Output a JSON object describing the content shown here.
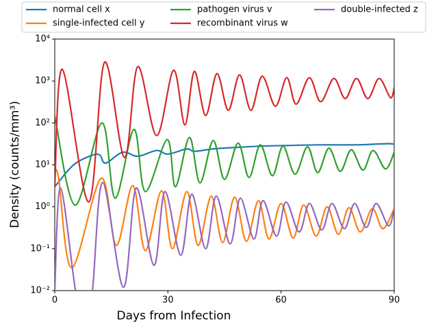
{
  "chart_data": {
    "type": "line",
    "xlabel": "Days from Infection",
    "ylabel": "Density (counts/mm³)",
    "xlim": [
      0,
      90
    ],
    "xticks": [
      0,
      30,
      60,
      90
    ],
    "ylim": [
      0.01,
      10000
    ],
    "log_y": true,
    "yticks": [
      {
        "value": 0.01,
        "label": "10⁻²"
      },
      {
        "value": 0.1,
        "label": "10⁻¹"
      },
      {
        "value": 1,
        "label": "10⁰"
      },
      {
        "value": 10,
        "label": "10¹"
      },
      {
        "value": 100,
        "label": "10²"
      },
      {
        "value": 1000,
        "label": "10³"
      },
      {
        "value": 10000,
        "label": "10⁴"
      }
    ],
    "legend": "top",
    "series": [
      {
        "name": "normal cell x",
        "color": "#1f77b4",
        "x": [
          0,
          5,
          10,
          12,
          13.5,
          18,
          22,
          27,
          30,
          35,
          37,
          42,
          48,
          55,
          62,
          70,
          80,
          88,
          90
        ],
        "values": [
          3,
          10,
          17,
          17,
          11,
          20,
          16,
          22,
          18,
          24,
          21,
          24,
          26,
          28,
          29,
          30,
          30,
          32,
          31
        ]
      },
      {
        "name": "single-infected cell y",
        "color": "#ff7f0e",
        "x": [
          0,
          1,
          4.5,
          12.3,
          16.3,
          20.7,
          24,
          28.3,
          31.2,
          35,
          38,
          41.5,
          44.5,
          47.7,
          50.8,
          54,
          56.8,
          60,
          63.2,
          66,
          69.3,
          72.2,
          75.2,
          78,
          81,
          84.2,
          87,
          90
        ],
        "values": [
          6,
          5,
          0.035,
          4.8,
          0.12,
          3.2,
          0.09,
          2.4,
          0.1,
          2.3,
          0.12,
          1.8,
          0.14,
          1.7,
          0.15,
          1.4,
          0.17,
          1.2,
          0.18,
          1.1,
          0.2,
          1.0,
          0.22,
          0.95,
          0.25,
          0.9,
          0.3,
          0.9
        ]
      },
      {
        "name": "pathogen virus v",
        "color": "#2ca02c",
        "x": [
          0,
          5.4,
          12.5,
          16,
          21,
          24,
          29.8,
          32,
          35.7,
          38.5,
          42,
          45,
          48.6,
          51.5,
          54.5,
          57.7,
          60.5,
          63.7,
          67,
          69.7,
          72.7,
          75.7,
          78.6,
          81.7,
          84.4,
          87.7,
          90
        ],
        "values": [
          150,
          1.1,
          100,
          1.6,
          70,
          2.3,
          40,
          3,
          45,
          3.7,
          38,
          4.5,
          33,
          5,
          30,
          5.5,
          28,
          6,
          27,
          6.5,
          25,
          7,
          23,
          7.5,
          22,
          8,
          20
        ]
      },
      {
        "name": "recombinant virus w",
        "color": "#d62728",
        "x": [
          0,
          2,
          9,
          13.2,
          18.5,
          22,
          27,
          31.5,
          34.5,
          37,
          40,
          43,
          46,
          49,
          52,
          55,
          58.5,
          61.5,
          64,
          67.5,
          70.5,
          74,
          77,
          80,
          83,
          86,
          89,
          90
        ],
        "values": [
          3,
          1900,
          1.3,
          2800,
          15,
          2200,
          50,
          1800,
          90,
          1700,
          150,
          1500,
          200,
          1400,
          200,
          1300,
          250,
          1200,
          280,
          1200,
          320,
          1150,
          380,
          1150,
          380,
          1150,
          400,
          700
        ]
      },
      {
        "name": "double-infected z",
        "color": "#9467bd",
        "x": [
          0,
          1.5,
          5.5,
          8,
          10,
          12.7,
          18.2,
          21.6,
          26.3,
          29.2,
          33.4,
          36.3,
          40,
          42.8,
          46.5,
          49.2,
          52.8,
          55.2,
          58.8,
          61.3,
          64.8,
          67.5,
          70.8,
          73.5,
          76.8,
          79.5,
          82.6,
          85.2,
          88.5,
          90
        ],
        "values": [
          0.01,
          2.8,
          0.01,
          0.001,
          0.01,
          3.8,
          0.012,
          2.8,
          0.04,
          2.3,
          0.07,
          2,
          0.1,
          1.8,
          0.13,
          1.6,
          0.17,
          1.4,
          0.2,
          1.3,
          0.25,
          1.2,
          0.28,
          1.2,
          0.3,
          1.2,
          0.32,
          1.2,
          0.35,
          0.9
        ]
      }
    ]
  }
}
